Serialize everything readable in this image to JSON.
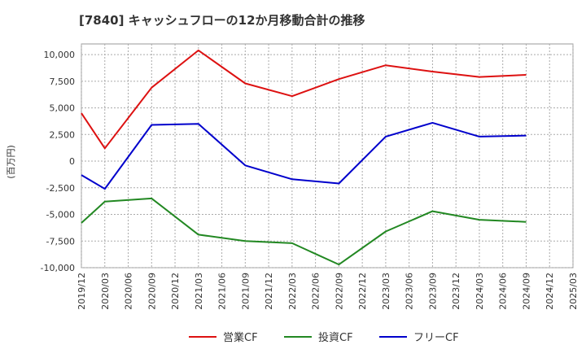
{
  "chart_data": {
    "type": "line",
    "title": "[7840]  キャッシュフローの12か月移動合計の推移",
    "ylabel": "(百万円)",
    "xlabel": "",
    "ylim": [
      -10000,
      11000
    ],
    "yticks": [
      10000,
      7500,
      5000,
      2500,
      0,
      -2500,
      -5000,
      -7500,
      -10000
    ],
    "ytick_labels": [
      "10,000",
      "7,500",
      "5,000",
      "2,500",
      "0",
      "-2,500",
      "-5,000",
      "-7,500",
      "-10,000"
    ],
    "categories": [
      "2019/12",
      "2020/03",
      "2020/06",
      "2020/09",
      "2020/12",
      "2021/03",
      "2021/06",
      "2021/09",
      "2021/12",
      "2022/03",
      "2022/06",
      "2022/09",
      "2022/12",
      "2023/03",
      "2023/06",
      "2023/09",
      "2023/12",
      "2024/03",
      "2024/06",
      "2024/09",
      "2024/12",
      "2025/03"
    ],
    "grid": true,
    "legend_position": "bottom",
    "series": [
      {
        "name": "営業CF",
        "color": "#dd1111",
        "values": [
          4500,
          1200,
          null,
          6900,
          null,
          10400,
          null,
          7300,
          null,
          6100,
          null,
          7700,
          null,
          9000,
          null,
          8400,
          null,
          7900,
          null,
          8100,
          null,
          null
        ]
      },
      {
        "name": "投資CF",
        "color": "#228822",
        "values": [
          -5800,
          -3800,
          null,
          -3500,
          null,
          -6900,
          null,
          -7500,
          null,
          -7700,
          null,
          -9700,
          null,
          -6600,
          null,
          -4700,
          null,
          -5500,
          null,
          -5700,
          null,
          null
        ]
      },
      {
        "name": "フリーCF",
        "color": "#0000cc",
        "values": [
          -1300,
          -2600,
          null,
          3400,
          null,
          3500,
          null,
          -400,
          null,
          -1700,
          null,
          -2100,
          null,
          2300,
          null,
          3600,
          null,
          2300,
          null,
          2400,
          null,
          null
        ]
      }
    ]
  }
}
